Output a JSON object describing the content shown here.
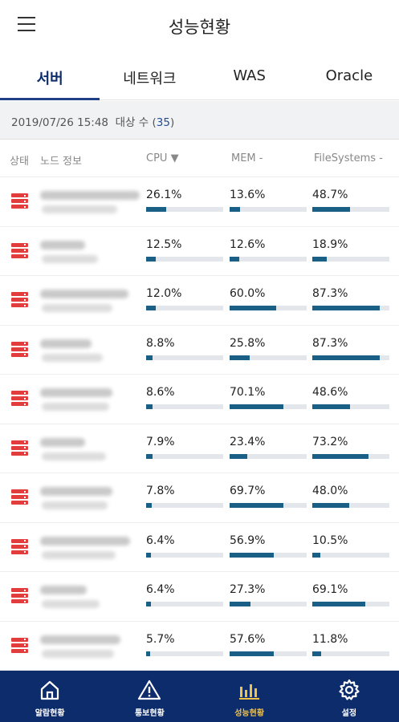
{
  "header": {
    "title": "성능현황"
  },
  "tabs": [
    {
      "label": "서버",
      "active": true
    },
    {
      "label": "네트워크",
      "active": false
    },
    {
      "label": "WAS",
      "active": false
    },
    {
      "label": "Oracle",
      "active": false
    }
  ],
  "info": {
    "timestamp": "2019/07/26 15:48",
    "target_label": "대상 수",
    "open_paren": "(",
    "target_count": "35",
    "close_paren": ")"
  },
  "columns": {
    "status": "상태",
    "node": "노드 정보",
    "cpu": "CPU ▼",
    "mem": "MEM -",
    "fs": "FileSystems -"
  },
  "rows": [
    {
      "cpu": "26.1%",
      "mem": "13.6%",
      "fs": "48.7%",
      "cpu_v": 26.1,
      "mem_v": 13.6,
      "fs_v": 48.7
    },
    {
      "cpu": "12.5%",
      "mem": "12.6%",
      "fs": "18.9%",
      "cpu_v": 12.5,
      "mem_v": 12.6,
      "fs_v": 18.9
    },
    {
      "cpu": "12.0%",
      "mem": "60.0%",
      "fs": "87.3%",
      "cpu_v": 12.0,
      "mem_v": 60.0,
      "fs_v": 87.3
    },
    {
      "cpu": "8.8%",
      "mem": "25.8%",
      "fs": "87.3%",
      "cpu_v": 8.8,
      "mem_v": 25.8,
      "fs_v": 87.3
    },
    {
      "cpu": "8.6%",
      "mem": "70.1%",
      "fs": "48.6%",
      "cpu_v": 8.6,
      "mem_v": 70.1,
      "fs_v": 48.6
    },
    {
      "cpu": "7.9%",
      "mem": "23.4%",
      "fs": "73.2%",
      "cpu_v": 7.9,
      "mem_v": 23.4,
      "fs_v": 73.2
    },
    {
      "cpu": "7.8%",
      "mem": "69.7%",
      "fs": "48.0%",
      "cpu_v": 7.8,
      "mem_v": 69.7,
      "fs_v": 48.0
    },
    {
      "cpu": "6.4%",
      "mem": "56.9%",
      "fs": "10.5%",
      "cpu_v": 6.4,
      "mem_v": 56.9,
      "fs_v": 10.5
    },
    {
      "cpu": "6.4%",
      "mem": "27.3%",
      "fs": "69.1%",
      "cpu_v": 6.4,
      "mem_v": 27.3,
      "fs_v": 69.1
    },
    {
      "cpu": "5.7%",
      "mem": "57.6%",
      "fs": "11.8%",
      "cpu_v": 5.7,
      "mem_v": 57.6,
      "fs_v": 11.8
    }
  ],
  "nav": [
    {
      "label": "알람현황",
      "icon": "home-icon",
      "active": false
    },
    {
      "label": "통보현황",
      "icon": "warning-icon",
      "active": false
    },
    {
      "label": "성능현황",
      "icon": "bar-chart-icon",
      "active": true
    },
    {
      "label": "설정",
      "icon": "gear-icon",
      "active": false
    }
  ],
  "colors": {
    "primary": "#0d2c6c",
    "bar_fill": "#1a5f86",
    "alert": "#e23c3c",
    "active_nav": "#f0c24a"
  }
}
